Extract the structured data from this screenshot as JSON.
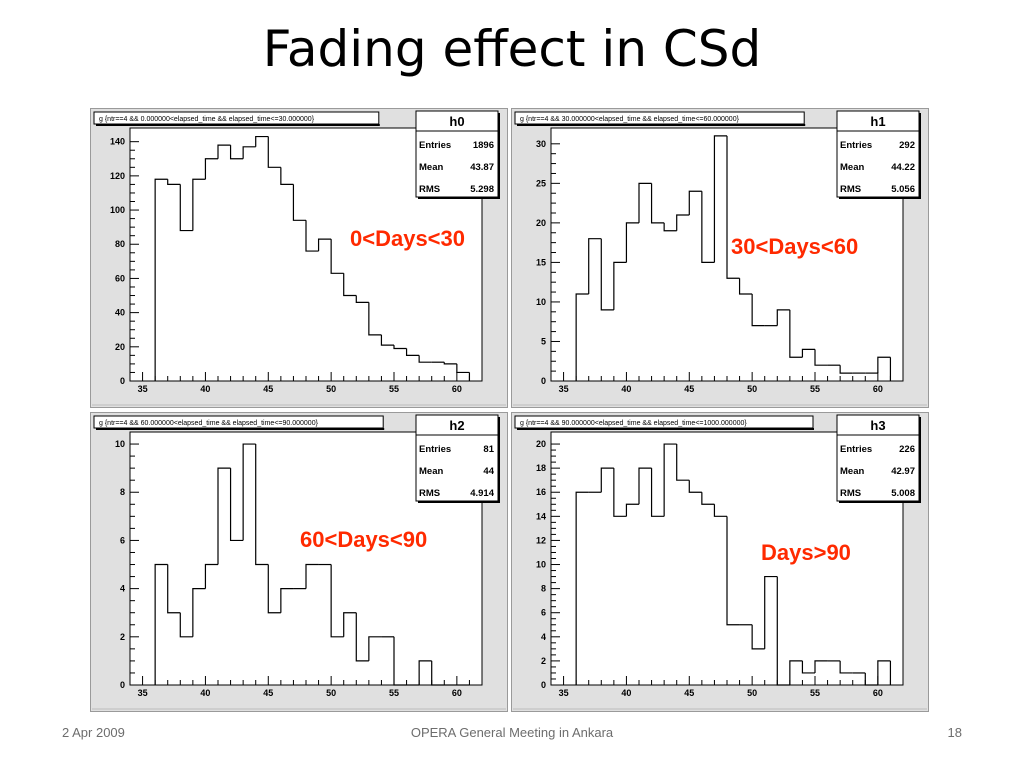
{
  "slide": {
    "title": "Fading effect in CSd",
    "footer_date": "2 Apr 2009",
    "footer_center": "OPERA General Meeting in Ankara",
    "page_number": "18"
  },
  "colors": {
    "annotation": "#ff2a00",
    "panel_bg": "#e0e0e0",
    "plot_bg": "#ffffff"
  },
  "chart_data": [
    {
      "type": "bar",
      "name": "h0",
      "title": "g {ntr==4 && 0.000000<elapsed_time && elapsed_time<=30.000000}",
      "annotation": "0<Days<30",
      "stats": {
        "entries_label": "Entries",
        "entries": "1896",
        "mean_label": "Mean",
        "mean": "43.87",
        "rms_label": "RMS",
        "rms": "5.298"
      },
      "xlim": [
        34,
        62
      ],
      "ylim": [
        0,
        148
      ],
      "xticks": [
        35,
        40,
        45,
        50,
        55,
        60
      ],
      "yticks": [
        0,
        20,
        40,
        60,
        80,
        100,
        120,
        140
      ],
      "bin_edges": [
        36,
        37,
        38,
        39,
        40,
        41,
        42,
        43,
        44,
        45,
        46,
        47,
        48,
        49,
        50,
        51,
        52,
        53,
        54,
        55,
        56,
        57,
        58,
        59,
        60,
        61
      ],
      "values": [
        118,
        115,
        88,
        118,
        130,
        138,
        130,
        137,
        143,
        125,
        115,
        94,
        76,
        83,
        63,
        50,
        46,
        27,
        21,
        19,
        15,
        11,
        11,
        10,
        5
      ]
    },
    {
      "type": "bar",
      "name": "h1",
      "title": "g {ntr==4 && 30.000000<elapsed_time && elapsed_time<=60.000000}",
      "annotation": "30<Days<60",
      "stats": {
        "entries_label": "Entries",
        "entries": "292",
        "mean_label": "Mean",
        "mean": "44.22",
        "rms_label": "RMS",
        "rms": "5.056"
      },
      "xlim": [
        34,
        62
      ],
      "ylim": [
        0,
        32
      ],
      "xticks": [
        35,
        40,
        45,
        50,
        55,
        60
      ],
      "yticks": [
        0,
        5,
        10,
        15,
        20,
        25,
        30
      ],
      "bin_edges": [
        36,
        37,
        38,
        39,
        40,
        41,
        42,
        43,
        44,
        45,
        46,
        47,
        48,
        49,
        50,
        51,
        52,
        53,
        54,
        55,
        56,
        57,
        58,
        59,
        60,
        61
      ],
      "values": [
        11,
        18,
        9,
        15,
        20,
        25,
        20,
        19,
        21,
        24,
        15,
        31,
        13,
        11,
        7,
        7,
        9,
        3,
        4,
        2,
        2,
        1,
        1,
        1,
        3
      ]
    },
    {
      "type": "bar",
      "name": "h2",
      "title": "g {ntr==4 && 60.000000<elapsed_time && elapsed_time<=90.000000}",
      "annotation": "60<Days<90",
      "stats": {
        "entries_label": "Entries",
        "entries": "81",
        "mean_label": "Mean",
        "mean": "44",
        "rms_label": "RMS",
        "rms": "4.914"
      },
      "xlim": [
        34,
        62
      ],
      "ylim": [
        0,
        10.5
      ],
      "xticks": [
        35,
        40,
        45,
        50,
        55,
        60
      ],
      "yticks": [
        0,
        2,
        4,
        6,
        8,
        10
      ],
      "bin_edges": [
        36,
        37,
        38,
        39,
        40,
        41,
        42,
        43,
        44,
        45,
        46,
        47,
        48,
        49,
        50,
        51,
        52,
        53,
        54,
        55,
        56,
        57,
        58,
        59,
        60,
        61
      ],
      "values": [
        5,
        3,
        2,
        4,
        5,
        9,
        6,
        10,
        5,
        3,
        4,
        4,
        5,
        5,
        2,
        3,
        1,
        2,
        2,
        0,
        0,
        1,
        0,
        0,
        0
      ]
    },
    {
      "type": "bar",
      "name": "h3",
      "title": "g {ntr==4 && 90.000000<elapsed_time && elapsed_time<=1000.000000}",
      "annotation": "Days>90",
      "stats": {
        "entries_label": "Entries",
        "entries": "226",
        "mean_label": "Mean",
        "mean": "42.97",
        "rms_label": "RMS",
        "rms": "5.008"
      },
      "xlim": [
        34,
        62
      ],
      "ylim": [
        0,
        21
      ],
      "xticks": [
        35,
        40,
        45,
        50,
        55,
        60
      ],
      "yticks": [
        0,
        2,
        4,
        6,
        8,
        10,
        12,
        14,
        16,
        18,
        20
      ],
      "bin_edges": [
        36,
        37,
        38,
        39,
        40,
        41,
        42,
        43,
        44,
        45,
        46,
        47,
        48,
        49,
        50,
        51,
        52,
        53,
        54,
        55,
        56,
        57,
        58,
        59,
        60,
        61
      ],
      "values": [
        16,
        16,
        18,
        14,
        15,
        18,
        14,
        20,
        17,
        16,
        15,
        14,
        5,
        5,
        3,
        9,
        0,
        2,
        1,
        2,
        2,
        1,
        1,
        0,
        2
      ]
    }
  ]
}
